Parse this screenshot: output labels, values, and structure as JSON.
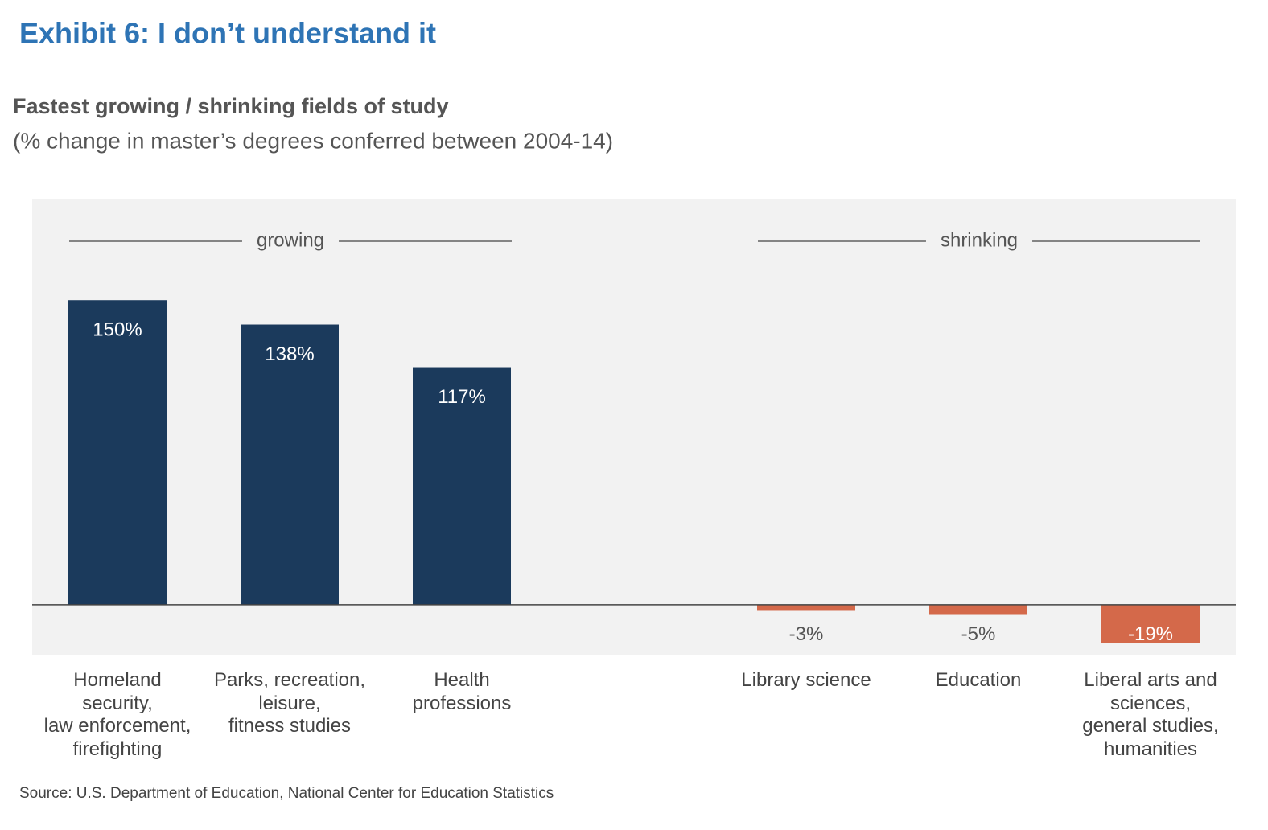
{
  "chart_data": {
    "type": "bar",
    "title": "Exhibit 6: I don’t understand it",
    "subtitle": "Fastest growing / shrinking fields of study",
    "subtitle2": "(% change in master’s degrees conferred between 2004-14)",
    "annotations": [
      "growing",
      "shrinking"
    ],
    "categories": [
      "Homeland\nsecurity,\nlaw enforcement,\nfirefighting",
      "Parks, recreation,\nleisure,\nfitness studies",
      "Health\nprofessions",
      null,
      "Library science",
      "Education",
      "Liberal arts and\nsciences,\ngeneral studies,\nhumanities"
    ],
    "values": [
      150,
      138,
      117,
      null,
      -3,
      -5,
      -19
    ],
    "value_labels": [
      "150%",
      "138%",
      "117%",
      null,
      "-3%",
      "-5%",
      "-19%"
    ],
    "colors": [
      "#1b3a5c",
      "#1b3a5c",
      "#1b3a5c",
      null,
      "#d4694a",
      "#d4694a",
      "#d4694a"
    ],
    "ylim": [
      -25,
      200
    ],
    "source": "Source: U.S. Department of Education, National Center for Education Statistics"
  }
}
